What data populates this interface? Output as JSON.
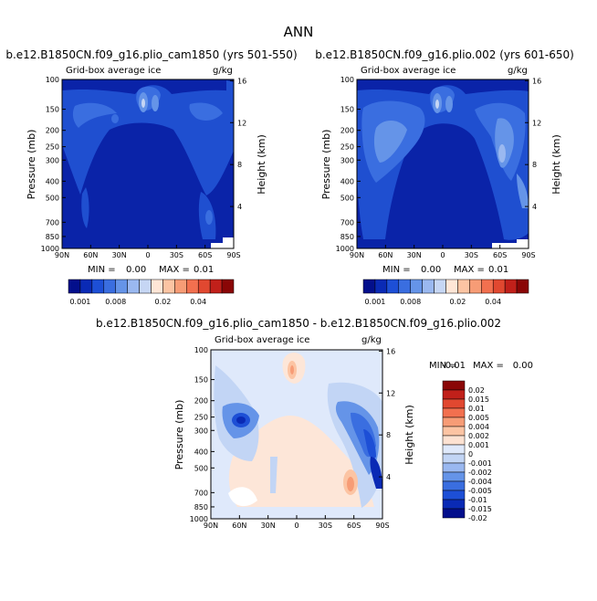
{
  "page_title": "ANN",
  "chart_data": [
    {
      "type": "contour",
      "title": "b.e12.B1850CN.f09_g16.plio_cam1850 (yrs 501-550)",
      "subtitle_left": "Grid-box average ice",
      "subtitle_right": "g/kg",
      "ylabel": "Pressure (mb)",
      "ylabel_right": "Height (km)",
      "x_ticks": [
        "90N",
        "60N",
        "30N",
        "0",
        "30S",
        "60S",
        "90S"
      ],
      "y_ticks": [
        "100",
        "150",
        "200",
        "250",
        "300",
        "400",
        "500",
        "700",
        "850",
        "1000"
      ],
      "height_ticks": [
        "16",
        "12",
        "8",
        "4"
      ],
      "stats_min_label": "MIN =",
      "stats_min": "0.00",
      "stats_max_label": "MAX =",
      "stats_max": "0.01",
      "colorbar_labels": [
        "0.001",
        "0.008",
        "0.02",
        "0.04"
      ]
    },
    {
      "type": "contour",
      "title": "b.e12.B1850CN.f09_g16.plio.002 (yrs 601-650)",
      "subtitle_left": "Grid-box average ice",
      "subtitle_right": "g/kg",
      "ylabel": "Pressure (mb)",
      "ylabel_right": "Height (km)",
      "x_ticks": [
        "90N",
        "60N",
        "30N",
        "0",
        "30S",
        "60S",
        "90S"
      ],
      "y_ticks": [
        "100",
        "150",
        "200",
        "250",
        "300",
        "400",
        "500",
        "700",
        "850",
        "1000"
      ],
      "height_ticks": [
        "16",
        "12",
        "8",
        "4"
      ],
      "stats_min_label": "MIN =",
      "stats_min": "0.00",
      "stats_max_label": "MAX =",
      "stats_max": "0.01",
      "colorbar_labels": [
        "0.001",
        "0.008",
        "0.02",
        "0.04"
      ]
    },
    {
      "type": "contour",
      "title": "b.e12.B1850CN.f09_g16.plio_cam1850 - b.e12.B1850CN.f09_g16.plio.002",
      "subtitle_left": "Grid-box average ice",
      "subtitle_right": "g/kg",
      "ylabel": "Pressure (mb)",
      "ylabel_right": "Height (km)",
      "x_ticks": [
        "90N",
        "60N",
        "30N",
        "0",
        "30S",
        "60S",
        "90S"
      ],
      "y_ticks": [
        "100",
        "150",
        "200",
        "250",
        "300",
        "400",
        "500",
        "700",
        "850",
        "1000"
      ],
      "height_ticks": [
        "16",
        "12",
        "8",
        "4"
      ],
      "stats_min_label": "MIN =",
      "stats_min": "-0.01",
      "stats_max_label": "MAX =",
      "stats_max": "0.00",
      "colorbar_labels": [
        "0.02",
        "0.015",
        "0.01",
        "0.005",
        "0.004",
        "0.002",
        "0.001",
        "0",
        "-0.001",
        "-0.002",
        "-0.004",
        "-0.005",
        "-0.01",
        "-0.015",
        "-0.02"
      ]
    }
  ],
  "colors": {
    "seq_colorbar": [
      "#030f8c",
      "#0a2ab5",
      "#1d4fd6",
      "#3a6ee0",
      "#6594e8",
      "#9ab8f0",
      "#c6d6f4",
      "#ffe6d6",
      "#fcc4a3",
      "#f79c76",
      "#f2704f",
      "#e14830",
      "#c1201a",
      "#8a0606"
    ],
    "diff_colorbar": [
      "#8a0606",
      "#c1201a",
      "#e14830",
      "#f2704f",
      "#f79c76",
      "#fcc4a3",
      "#fde2d2",
      "#dfe9fb",
      "#c2d5f5",
      "#9ab8f0",
      "#6594e8",
      "#3a6ee0",
      "#1d4fd6",
      "#0a2ab5",
      "#030f8c"
    ]
  }
}
